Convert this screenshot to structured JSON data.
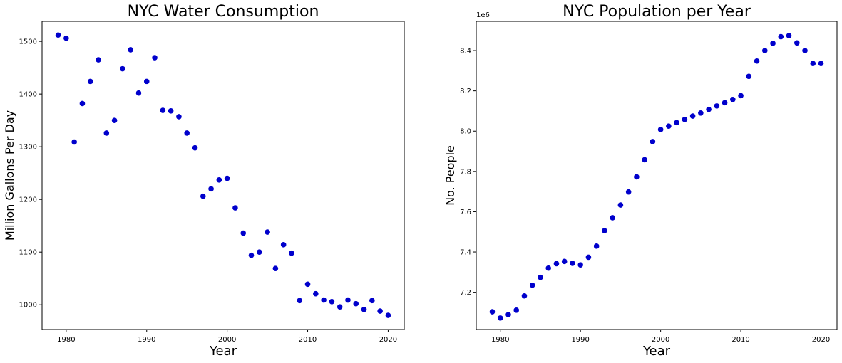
{
  "chart_data": [
    {
      "type": "scatter",
      "title": "NYC Water Consumption",
      "xlabel": "Year",
      "ylabel": "Million Gallons Per Day",
      "xlim": [
        1977,
        2022
      ],
      "ylim": [
        953,
        1538
      ],
      "xticks": [
        1980,
        1990,
        2000,
        2010,
        2020
      ],
      "yticks": [
        1000,
        1100,
        1200,
        1300,
        1400,
        1500
      ],
      "marker_color": "#0000cc",
      "grid": false,
      "series": [
        {
          "x": [
            1979,
            1980,
            1981,
            1982,
            1983,
            1984,
            1985,
            1986,
            1987,
            1988,
            1989,
            1990,
            1991,
            1992,
            1993,
            1994,
            1995,
            1996,
            1997,
            1998,
            1999,
            2000,
            2001,
            2002,
            2003,
            2004,
            2005,
            2006,
            2007,
            2008,
            2009,
            2010,
            2011,
            2012,
            2013,
            2014,
            2015,
            2016,
            2017,
            2018,
            2019,
            2020
          ],
          "y": [
            1512,
            1506,
            1309,
            1382,
            1424,
            1465,
            1326,
            1350,
            1448,
            1484,
            1402,
            1424,
            1469,
            1369,
            1368,
            1357,
            1326,
            1298,
            1206,
            1220,
            1237,
            1240,
            1184,
            1136,
            1094,
            1100,
            1138,
            1069,
            1114,
            1098,
            1008,
            1039,
            1021,
            1009,
            1006,
            996,
            1009,
            1002,
            991,
            1008,
            988,
            980
          ]
        }
      ]
    },
    {
      "type": "scatter",
      "title": "NYC Population per Year",
      "xlabel": "Year",
      "ylabel": "No. People",
      "y_offset_label": "1e6",
      "xlim": [
        1977,
        2022
      ],
      "ylim": [
        7.015,
        8.545
      ],
      "xticks": [
        1980,
        1990,
        2000,
        2010,
        2020
      ],
      "yticks": [
        7.2,
        7.4,
        7.6,
        7.8,
        8.0,
        8.2,
        8.4
      ],
      "ytick_labels": [
        "7.2",
        "7.4",
        "7.6",
        "7.8",
        "8.0",
        "8.2",
        "8.4"
      ],
      "marker_color": "#0000cc",
      "grid": false,
      "series": [
        {
          "x": [
            1979,
            1980,
            1981,
            1982,
            1983,
            1984,
            1985,
            1986,
            1987,
            1988,
            1989,
            1990,
            1991,
            1992,
            1993,
            1994,
            1995,
            1996,
            1997,
            1998,
            1999,
            2000,
            2001,
            2002,
            2003,
            2004,
            2005,
            2006,
            2007,
            2008,
            2009,
            2010,
            2011,
            2012,
            2013,
            2014,
            2015,
            2016,
            2017,
            2018,
            2019,
            2020
          ],
          "y": [
            7.103,
            7.072,
            7.089,
            7.111,
            7.182,
            7.235,
            7.274,
            7.32,
            7.342,
            7.353,
            7.344,
            7.336,
            7.374,
            7.429,
            7.506,
            7.57,
            7.633,
            7.698,
            7.773,
            7.858,
            7.948,
            8.008,
            8.025,
            8.042,
            8.058,
            8.075,
            8.09,
            8.108,
            8.125,
            8.141,
            8.157,
            8.176,
            8.272,
            8.348,
            8.4,
            8.436,
            8.469,
            8.474,
            8.438,
            8.4,
            8.336,
            8.336
          ]
        }
      ]
    }
  ]
}
